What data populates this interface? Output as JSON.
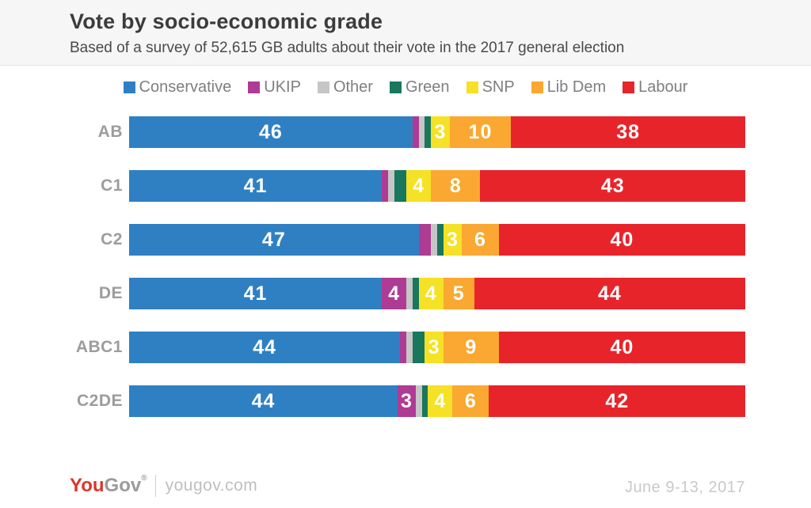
{
  "header": {
    "title": "Vote by socio-economic grade",
    "subtitle": "Based of a survey of 52,615 GB adults about their vote in the 2017 general election"
  },
  "legend": [
    {
      "label": "Conservative",
      "color": "#2F80C3"
    },
    {
      "label": "UKIP",
      "color": "#AE3B94"
    },
    {
      "label": "Other",
      "color": "#C6C6C6"
    },
    {
      "label": "Green",
      "color": "#18775C"
    },
    {
      "label": "SNP",
      "color": "#F5E125"
    },
    {
      "label": "Lib Dem",
      "color": "#FAA831"
    },
    {
      "label": "Labour",
      "color": "#E8242B"
    }
  ],
  "chart_data": {
    "type": "bar",
    "orientation": "horizontal",
    "stacked": true,
    "title": "Vote by socio-economic grade",
    "categories": [
      "AB",
      "C1",
      "C2",
      "DE",
      "ABC1",
      "C2DE"
    ],
    "group_break_before": "ABC1",
    "label_threshold": 3,
    "series": [
      {
        "name": "Conservative",
        "color": "#2F80C3",
        "values": [
          46,
          41,
          47,
          41,
          44,
          44
        ]
      },
      {
        "name": "UKIP",
        "color": "#AE3B94",
        "values": [
          1,
          1,
          2,
          4,
          1,
          3
        ]
      },
      {
        "name": "Other",
        "color": "#C6C6C6",
        "values": [
          1,
          1,
          1,
          1,
          1,
          1
        ]
      },
      {
        "name": "Green",
        "color": "#18775C",
        "values": [
          1,
          2,
          1,
          1,
          2,
          1
        ]
      },
      {
        "name": "SNP",
        "color": "#F5E125",
        "values": [
          3,
          4,
          3,
          4,
          3,
          4
        ]
      },
      {
        "name": "Lib Dem",
        "color": "#FAA831",
        "values": [
          10,
          8,
          6,
          5,
          9,
          6
        ]
      },
      {
        "name": "Labour",
        "color": "#E8242B",
        "values": [
          38,
          43,
          40,
          44,
          40,
          42
        ]
      }
    ]
  },
  "footer": {
    "logo_you": "You",
    "logo_gov": "Gov",
    "logo_reg": "®",
    "site": "yougov.com",
    "date": "June 9-13, 2017"
  }
}
